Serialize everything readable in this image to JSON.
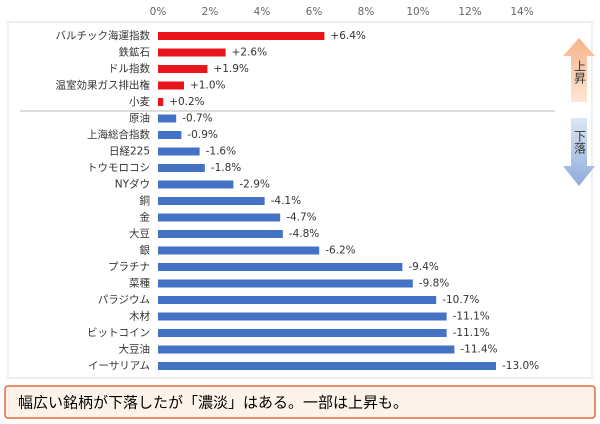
{
  "chart_data": {
    "type": "bar",
    "categories": [
      "バルチック海運指数",
      "鉄鉱石",
      "ドル指数",
      "温室効果ガス排出権",
      "小麦",
      "原油",
      "上海総合指数",
      "日経225",
      "トウモロコシ",
      "NYダウ",
      "銅",
      "金",
      "大豆",
      "銀",
      "プラチナ",
      "菜種",
      "パラジウム",
      "木材",
      "ビットコイン",
      "大豆油",
      "イーサリアム"
    ],
    "series": [
      {
        "name": "上昇",
        "color": "#e8161b",
        "values": [
          6.4,
          2.6,
          1.9,
          1.0,
          0.2,
          null,
          null,
          null,
          null,
          null,
          null,
          null,
          null,
          null,
          null,
          null,
          null,
          null,
          null,
          null,
          null
        ],
        "value_labels": [
          "+6.4%",
          "+2.6%",
          "+1.9%",
          "+1.0%",
          "+0.2%",
          null,
          null,
          null,
          null,
          null,
          null,
          null,
          null,
          null,
          null,
          null,
          null,
          null,
          null,
          null,
          null
        ]
      },
      {
        "name": "下落",
        "color": "#4472c4",
        "values": [
          null,
          null,
          null,
          null,
          null,
          -0.7,
          -0.9,
          -1.6,
          -1.8,
          -2.9,
          -4.1,
          -4.7,
          -4.8,
          -6.2,
          -9.4,
          -9.8,
          -10.7,
          -11.1,
          -11.1,
          -11.4,
          -13.0
        ],
        "value_labels": [
          null,
          null,
          null,
          null,
          null,
          "-0.7%",
          "-0.9%",
          "-1.6%",
          "-1.8%",
          "-2.9%",
          "-4.1%",
          "-4.7%",
          "-4.8%",
          "-6.2%",
          "-9.4%",
          "-9.8%",
          "-10.7%",
          "-11.1%",
          "-11.1%",
          "-11.4%",
          "-13.0%"
        ]
      }
    ],
    "xlim": [
      0,
      14
    ],
    "xticks": [
      {
        "value": 0,
        "label": "0%"
      },
      {
        "value": 2,
        "label": "2%"
      },
      {
        "value": 4,
        "label": "4%"
      },
      {
        "value": 6,
        "label": "6%"
      },
      {
        "value": 8,
        "label": "8%"
      },
      {
        "value": 10,
        "label": "10%"
      },
      {
        "value": 12,
        "label": "12%"
      },
      {
        "value": 14,
        "label": "14%"
      }
    ],
    "annotation": "幅広い銘柄が下落したが「濃淡」はある。一部は上昇も。"
  }
}
